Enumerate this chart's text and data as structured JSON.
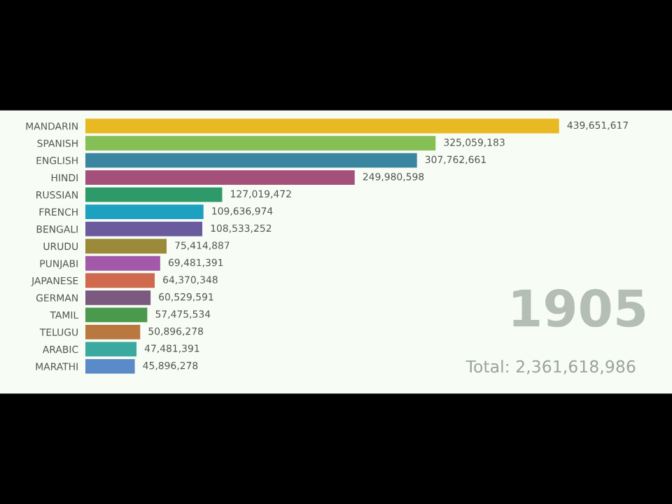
{
  "chart_data": {
    "type": "bar",
    "orientation": "horizontal",
    "categories": [
      "MANDARIN",
      "SPANISH",
      "ENGLISH",
      "HINDI",
      "RUSSIAN",
      "FRENCH",
      "BENGALI",
      "URUDU",
      "PUNJABI",
      "JAPANESE",
      "GERMAN",
      "TAMIL",
      "TELUGU",
      "ARABIC",
      "MARATHI"
    ],
    "values": [
      439651617,
      325059183,
      307762661,
      249980598,
      127019472,
      109636974,
      108533252,
      75414887,
      69481391,
      64370348,
      60529591,
      57475534,
      50896278,
      47481391,
      45896278
    ],
    "colors": [
      "#e8b923",
      "#86bf55",
      "#3a86a0",
      "#a4507a",
      "#2e9a6a",
      "#1ea0c0",
      "#6a5a9e",
      "#9a8a3a",
      "#a25aa8",
      "#d06a4e",
      "#7a5a7e",
      "#4a9a4e",
      "#b87840",
      "#3aaaa0",
      "#5a8ac8"
    ],
    "value_labels": [
      "439,651,617",
      "325,059,183",
      "307,762,661",
      "249,980,598",
      "127,019,472",
      "109,636,974",
      "108,533,252",
      "75,414,887",
      "69,481,391",
      "64,370,348",
      "60,529,591",
      "57,475,534",
      "50,896,278",
      "47,481,391",
      "45,896,278"
    ],
    "tick_labels": "y",
    "annotations": [
      "1905",
      "Total: 2,361,618,986"
    ]
  }
}
